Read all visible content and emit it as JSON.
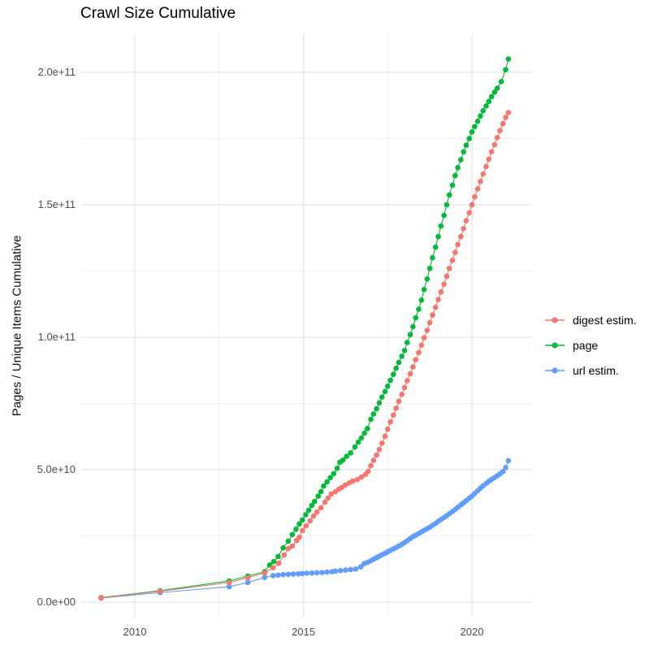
{
  "title": "Crawl Size Cumulative",
  "y_axis": {
    "label": "Pages / Unique Items Cumulative",
    "tick_labels": [
      "0.0e+00",
      "5.0e+10",
      "1.0e+11",
      "1.5e+11",
      "2.0e+11"
    ],
    "tick_values_billion": [
      0,
      50,
      100,
      150,
      200
    ],
    "minor_values_billion": [
      25,
      75,
      125,
      175
    ]
  },
  "x_axis": {
    "tick_labels": [
      "2010",
      "2015",
      "2020"
    ],
    "tick_values": [
      2010,
      2015,
      2020
    ],
    "minor_values": [
      2012.5,
      2017.5
    ]
  },
  "legend": {
    "items": [
      {
        "label": "digest estim.",
        "color": "#F8766D"
      },
      {
        "label": "page",
        "color": "#00BA38"
      },
      {
        "label": "url estim.",
        "color": "#619CFF"
      }
    ]
  },
  "colors": {
    "grid_major": "#e4e4e4",
    "grid_minor": "#efefef",
    "tick_text": "#4d4d4d"
  },
  "chart_data": {
    "type": "scatter",
    "title": "Crawl Size Cumulative",
    "xlabel": "",
    "ylabel": "Pages / Unique Items Cumulative",
    "x_unit": "year",
    "y_unit": "items, billions (1e9)",
    "xlim": [
      2008.4,
      2021.75
    ],
    "ylim_billion": [
      -8,
      214
    ],
    "grid": true,
    "legend_position": "right",
    "marker": "point-with-line",
    "series": [
      {
        "name": "digest estim.",
        "color": "#F8766D",
        "points_year_billion": [
          [
            2009.0,
            1.6
          ],
          [
            2010.75,
            4.1
          ],
          [
            2012.8,
            7.4
          ],
          [
            2013.35,
            9.2
          ],
          [
            2013.85,
            11.0
          ],
          [
            2014.1,
            13.0
          ],
          [
            2014.27,
            14.7
          ],
          [
            2014.43,
            17.8
          ],
          [
            2014.55,
            20.2
          ],
          [
            2014.67,
            21.2
          ],
          [
            2014.8,
            23.3
          ],
          [
            2014.88,
            24.5
          ],
          [
            2014.97,
            27.0
          ],
          [
            2015.08,
            28.8
          ],
          [
            2015.2,
            30.7
          ],
          [
            2015.3,
            32.5
          ],
          [
            2015.4,
            34.0
          ],
          [
            2015.52,
            35.6
          ],
          [
            2015.64,
            37.7
          ],
          [
            2015.73,
            39.3
          ],
          [
            2015.83,
            40.8
          ],
          [
            2015.95,
            41.7
          ],
          [
            2016.05,
            42.6
          ],
          [
            2016.14,
            43.3
          ],
          [
            2016.24,
            44.2
          ],
          [
            2016.36,
            45.0
          ],
          [
            2016.46,
            45.7
          ],
          [
            2016.6,
            46.3
          ],
          [
            2016.72,
            47.2
          ],
          [
            2016.84,
            48.2
          ],
          [
            2016.92,
            49.4
          ],
          [
            2017.0,
            51.5
          ],
          [
            2017.08,
            53.5
          ],
          [
            2017.17,
            55.5
          ],
          [
            2017.25,
            57.6
          ],
          [
            2017.33,
            60.0
          ],
          [
            2017.42,
            62.6
          ],
          [
            2017.5,
            65.3
          ],
          [
            2017.58,
            68.0
          ],
          [
            2017.67,
            70.6
          ],
          [
            2017.75,
            73.2
          ],
          [
            2017.83,
            75.8
          ],
          [
            2017.92,
            78.4
          ],
          [
            2018.0,
            81.0
          ],
          [
            2018.08,
            83.6
          ],
          [
            2018.17,
            86.2
          ],
          [
            2018.25,
            88.8
          ],
          [
            2018.33,
            91.5
          ],
          [
            2018.42,
            94.2
          ],
          [
            2018.5,
            97.0
          ],
          [
            2018.58,
            99.8
          ],
          [
            2018.67,
            102.6
          ],
          [
            2018.75,
            105.5
          ],
          [
            2018.83,
            108.4
          ],
          [
            2018.92,
            111.3
          ],
          [
            2019.0,
            114.2
          ],
          [
            2019.08,
            117.1
          ],
          [
            2019.17,
            120.0
          ],
          [
            2019.25,
            123.0
          ],
          [
            2019.33,
            126.0
          ],
          [
            2019.42,
            129.0
          ],
          [
            2019.5,
            132.0
          ],
          [
            2019.58,
            135.0
          ],
          [
            2019.67,
            138.0
          ],
          [
            2019.75,
            141.0
          ],
          [
            2019.83,
            144.0
          ],
          [
            2019.92,
            147.0
          ],
          [
            2020.0,
            150.0
          ],
          [
            2020.08,
            153.0
          ],
          [
            2020.17,
            156.0
          ],
          [
            2020.25,
            158.8
          ],
          [
            2020.33,
            161.6
          ],
          [
            2020.42,
            164.4
          ],
          [
            2020.5,
            167.2
          ],
          [
            2020.58,
            170.0
          ],
          [
            2020.67,
            172.7
          ],
          [
            2020.75,
            175.4
          ],
          [
            2020.83,
            178.0
          ],
          [
            2020.92,
            180.6
          ],
          [
            2021.0,
            183.0
          ],
          [
            2021.08,
            184.8
          ]
        ]
      },
      {
        "name": "page",
        "color": "#00BA38",
        "points_year_billion": [
          [
            2009.0,
            1.7
          ],
          [
            2010.75,
            4.3
          ],
          [
            2012.8,
            8.0
          ],
          [
            2013.35,
            9.8
          ],
          [
            2013.85,
            11.5
          ],
          [
            2014.0,
            14.0
          ],
          [
            2014.12,
            15.3
          ],
          [
            2014.25,
            17.2
          ],
          [
            2014.4,
            20.5
          ],
          [
            2014.55,
            23.0
          ],
          [
            2014.67,
            25.5
          ],
          [
            2014.78,
            27.5
          ],
          [
            2014.88,
            29.5
          ],
          [
            2014.97,
            31.0
          ],
          [
            2015.07,
            33.0
          ],
          [
            2015.16,
            34.7
          ],
          [
            2015.25,
            36.5
          ],
          [
            2015.33,
            38.0
          ],
          [
            2015.44,
            40.0
          ],
          [
            2015.52,
            41.7
          ],
          [
            2015.6,
            43.8
          ],
          [
            2015.7,
            45.4
          ],
          [
            2015.8,
            47.0
          ],
          [
            2015.9,
            48.5
          ],
          [
            2016.0,
            50.5
          ],
          [
            2016.08,
            52.8
          ],
          [
            2016.17,
            53.6
          ],
          [
            2016.28,
            55.0
          ],
          [
            2016.4,
            56.3
          ],
          [
            2016.53,
            58.6
          ],
          [
            2016.63,
            60.4
          ],
          [
            2016.72,
            62.0
          ],
          [
            2016.81,
            63.8
          ],
          [
            2016.9,
            65.5
          ],
          [
            2017.0,
            69.0
          ],
          [
            2017.08,
            71.0
          ],
          [
            2017.17,
            73.0
          ],
          [
            2017.25,
            75.2
          ],
          [
            2017.33,
            77.4
          ],
          [
            2017.42,
            79.5
          ],
          [
            2017.5,
            81.5
          ],
          [
            2017.58,
            83.7
          ],
          [
            2017.67,
            86.0
          ],
          [
            2017.75,
            88.3
          ],
          [
            2017.83,
            90.5
          ],
          [
            2017.92,
            92.8
          ],
          [
            2018.0,
            95.0
          ],
          [
            2018.08,
            98.0
          ],
          [
            2018.17,
            101.0
          ],
          [
            2018.25,
            104.0
          ],
          [
            2018.33,
            107.3
          ],
          [
            2018.42,
            110.6
          ],
          [
            2018.5,
            114.0
          ],
          [
            2018.58,
            118.0
          ],
          [
            2018.67,
            122.0
          ],
          [
            2018.75,
            126.0
          ],
          [
            2018.83,
            130.0
          ],
          [
            2018.92,
            134.0
          ],
          [
            2019.0,
            138.0
          ],
          [
            2019.08,
            142.0
          ],
          [
            2019.17,
            146.0
          ],
          [
            2019.25,
            150.0
          ],
          [
            2019.33,
            153.7
          ],
          [
            2019.42,
            157.4
          ],
          [
            2019.5,
            161.0
          ],
          [
            2019.58,
            164.0
          ],
          [
            2019.67,
            167.0
          ],
          [
            2019.75,
            170.0
          ],
          [
            2019.83,
            172.5
          ],
          [
            2019.92,
            175.0
          ],
          [
            2020.0,
            177.5
          ],
          [
            2020.08,
            179.5
          ],
          [
            2020.17,
            181.5
          ],
          [
            2020.25,
            183.5
          ],
          [
            2020.33,
            185.5
          ],
          [
            2020.42,
            187.3
          ],
          [
            2020.5,
            189.0
          ],
          [
            2020.58,
            190.8
          ],
          [
            2020.67,
            192.5
          ],
          [
            2020.75,
            194.0
          ],
          [
            2020.87,
            196.5
          ],
          [
            2021.0,
            201.0
          ],
          [
            2021.08,
            205.0
          ]
        ]
      },
      {
        "name": "url estim.",
        "color": "#619CFF",
        "points_year_billion": [
          [
            2009.0,
            1.5
          ],
          [
            2010.75,
            3.6
          ],
          [
            2012.8,
            5.8
          ],
          [
            2013.35,
            7.4
          ],
          [
            2013.85,
            9.3
          ],
          [
            2014.1,
            10.0
          ],
          [
            2014.25,
            10.2
          ],
          [
            2014.4,
            10.4
          ],
          [
            2014.55,
            10.5
          ],
          [
            2014.7,
            10.6
          ],
          [
            2014.85,
            10.7
          ],
          [
            2014.97,
            10.8
          ],
          [
            2015.1,
            10.9
          ],
          [
            2015.25,
            11.0
          ],
          [
            2015.4,
            11.1
          ],
          [
            2015.55,
            11.2
          ],
          [
            2015.7,
            11.35
          ],
          [
            2015.85,
            11.5
          ],
          [
            2015.95,
            11.7
          ],
          [
            2016.1,
            11.9
          ],
          [
            2016.25,
            12.1
          ],
          [
            2016.4,
            12.3
          ],
          [
            2016.55,
            12.5
          ],
          [
            2016.7,
            13.3
          ],
          [
            2016.8,
            14.5
          ],
          [
            2016.9,
            15.0
          ],
          [
            2017.0,
            15.6
          ],
          [
            2017.08,
            16.2
          ],
          [
            2017.17,
            16.8
          ],
          [
            2017.25,
            17.3
          ],
          [
            2017.33,
            17.9
          ],
          [
            2017.42,
            18.4
          ],
          [
            2017.5,
            19.0
          ],
          [
            2017.58,
            19.5
          ],
          [
            2017.67,
            20.1
          ],
          [
            2017.75,
            20.6
          ],
          [
            2017.83,
            21.2
          ],
          [
            2017.92,
            21.8
          ],
          [
            2018.0,
            22.5
          ],
          [
            2018.08,
            23.2
          ],
          [
            2018.17,
            24.0
          ],
          [
            2018.25,
            24.7
          ],
          [
            2018.33,
            25.3
          ],
          [
            2018.42,
            25.9
          ],
          [
            2018.5,
            26.5
          ],
          [
            2018.58,
            27.1
          ],
          [
            2018.67,
            27.7
          ],
          [
            2018.75,
            28.3
          ],
          [
            2018.83,
            29.0
          ],
          [
            2018.92,
            29.7
          ],
          [
            2019.0,
            30.5
          ],
          [
            2019.08,
            31.2
          ],
          [
            2019.17,
            31.9
          ],
          [
            2019.25,
            32.6
          ],
          [
            2019.33,
            33.4
          ],
          [
            2019.42,
            34.2
          ],
          [
            2019.5,
            35.0
          ],
          [
            2019.58,
            35.8
          ],
          [
            2019.67,
            36.7
          ],
          [
            2019.75,
            37.5
          ],
          [
            2019.83,
            38.3
          ],
          [
            2019.92,
            39.2
          ],
          [
            2020.0,
            40.0
          ],
          [
            2020.08,
            41.0
          ],
          [
            2020.17,
            42.0
          ],
          [
            2020.25,
            43.0
          ],
          [
            2020.33,
            43.9
          ],
          [
            2020.42,
            44.8
          ],
          [
            2020.5,
            45.6
          ],
          [
            2020.58,
            46.3
          ],
          [
            2020.67,
            47.0
          ],
          [
            2020.75,
            47.7
          ],
          [
            2020.83,
            48.4
          ],
          [
            2020.92,
            49.3
          ],
          [
            2021.0,
            50.8
          ],
          [
            2021.08,
            53.4
          ]
        ]
      }
    ]
  }
}
